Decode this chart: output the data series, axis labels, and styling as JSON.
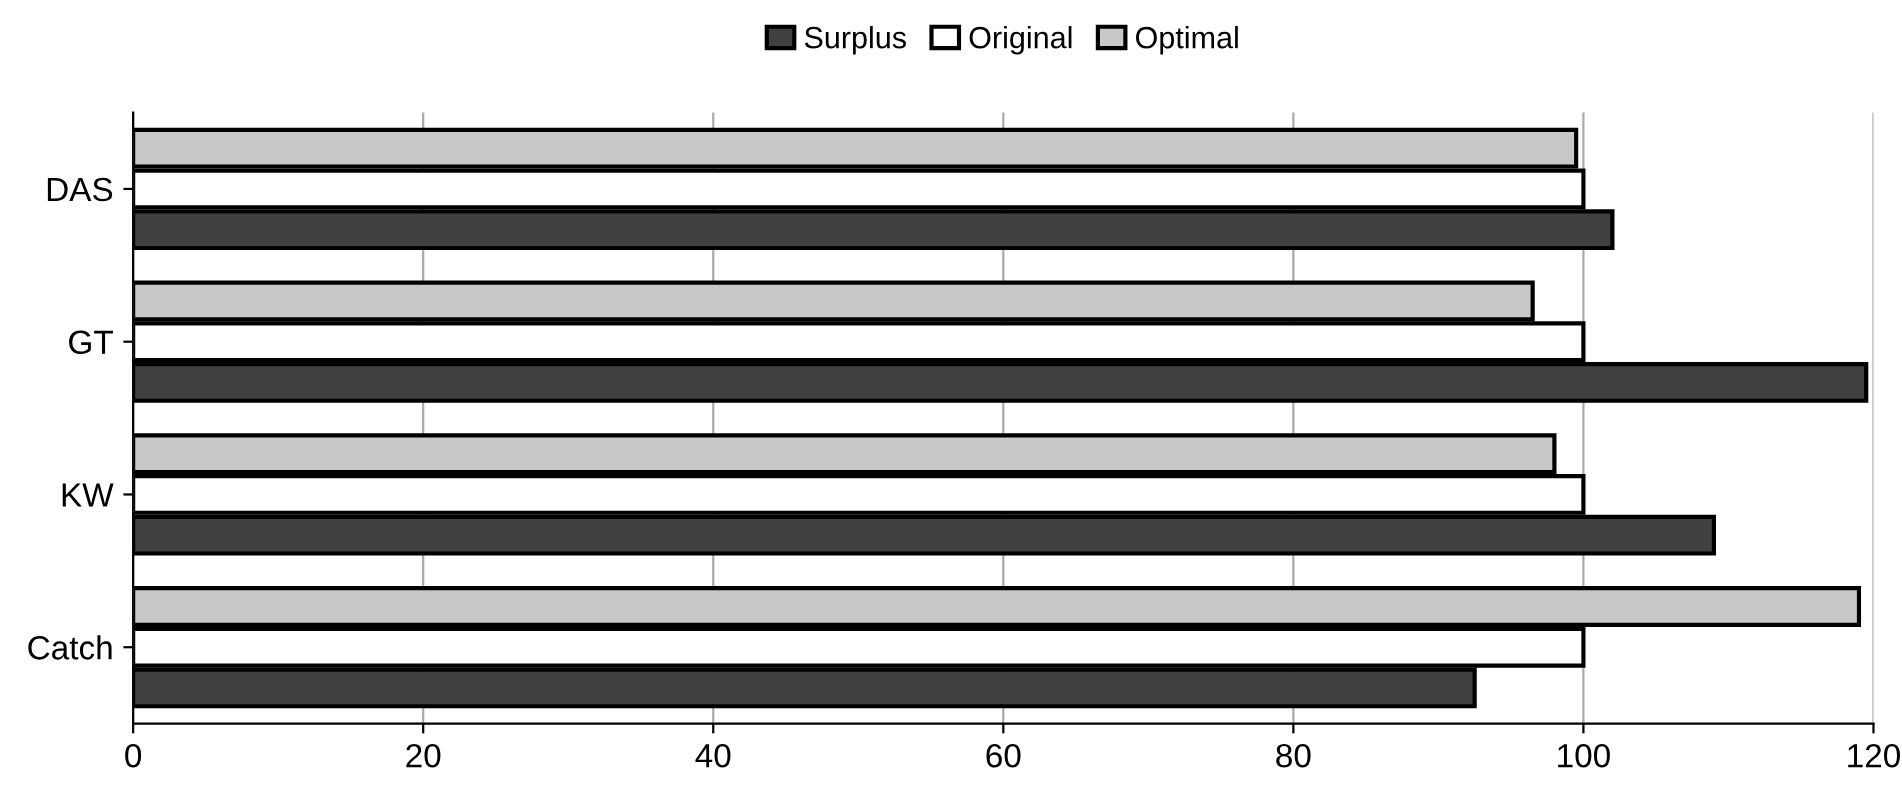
{
  "chart_data": {
    "type": "bar",
    "orientation": "horizontal",
    "categories": [
      "DAS",
      "GT",
      "KW",
      "Catch"
    ],
    "series": [
      {
        "name": "Surplus",
        "color": "#404040",
        "values": [
          102,
          119.5,
          109,
          92.5
        ]
      },
      {
        "name": "Original",
        "color": "#ffffff",
        "values": [
          100,
          100,
          100,
          100
        ]
      },
      {
        "name": "Optimal",
        "color": "#c8c8c8",
        "values": [
          99.5,
          96.5,
          98,
          119
        ]
      }
    ],
    "xlim": [
      0,
      120
    ],
    "xticks": [
      0,
      20,
      40,
      60,
      80,
      100,
      120
    ],
    "grid": "x",
    "legend": "top"
  }
}
